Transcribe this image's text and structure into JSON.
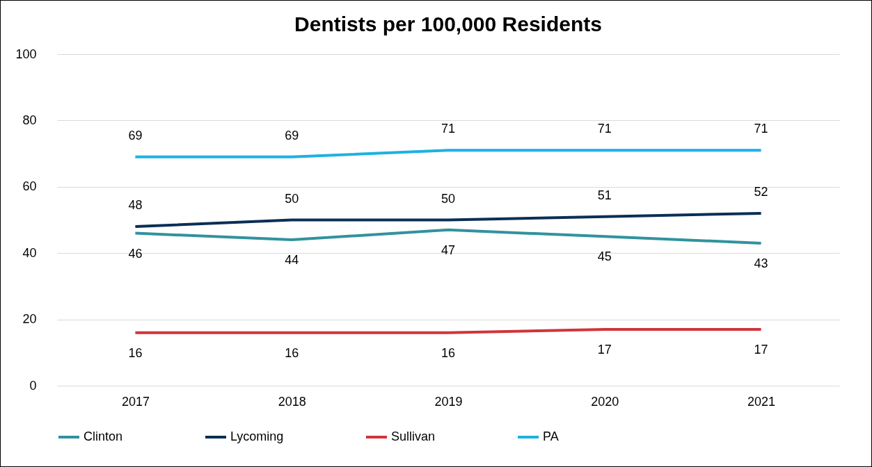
{
  "chart_data": {
    "type": "line",
    "title": "Dentists per 100,000 Residents",
    "categories": [
      "2017",
      "2018",
      "2019",
      "2020",
      "2021"
    ],
    "series": [
      {
        "name": "Clinton",
        "color": "#31929e",
        "values": [
          46,
          44,
          47,
          45,
          43
        ]
      },
      {
        "name": "Lycoming",
        "color": "#0b2f55",
        "values": [
          48,
          50,
          50,
          51,
          52
        ]
      },
      {
        "name": "Sullivan",
        "color": "#d1343b",
        "values": [
          16,
          16,
          16,
          17,
          17
        ]
      },
      {
        "name": "PA",
        "color": "#1db1e3",
        "values": [
          69,
          69,
          71,
          71,
          71
        ]
      }
    ],
    "ylim": [
      0,
      100
    ],
    "yticks": [
      0,
      20,
      40,
      60,
      80,
      100
    ],
    "grid": "y",
    "legend": "bottom",
    "data_labels": true,
    "marker": "none",
    "line_style": "solid"
  }
}
